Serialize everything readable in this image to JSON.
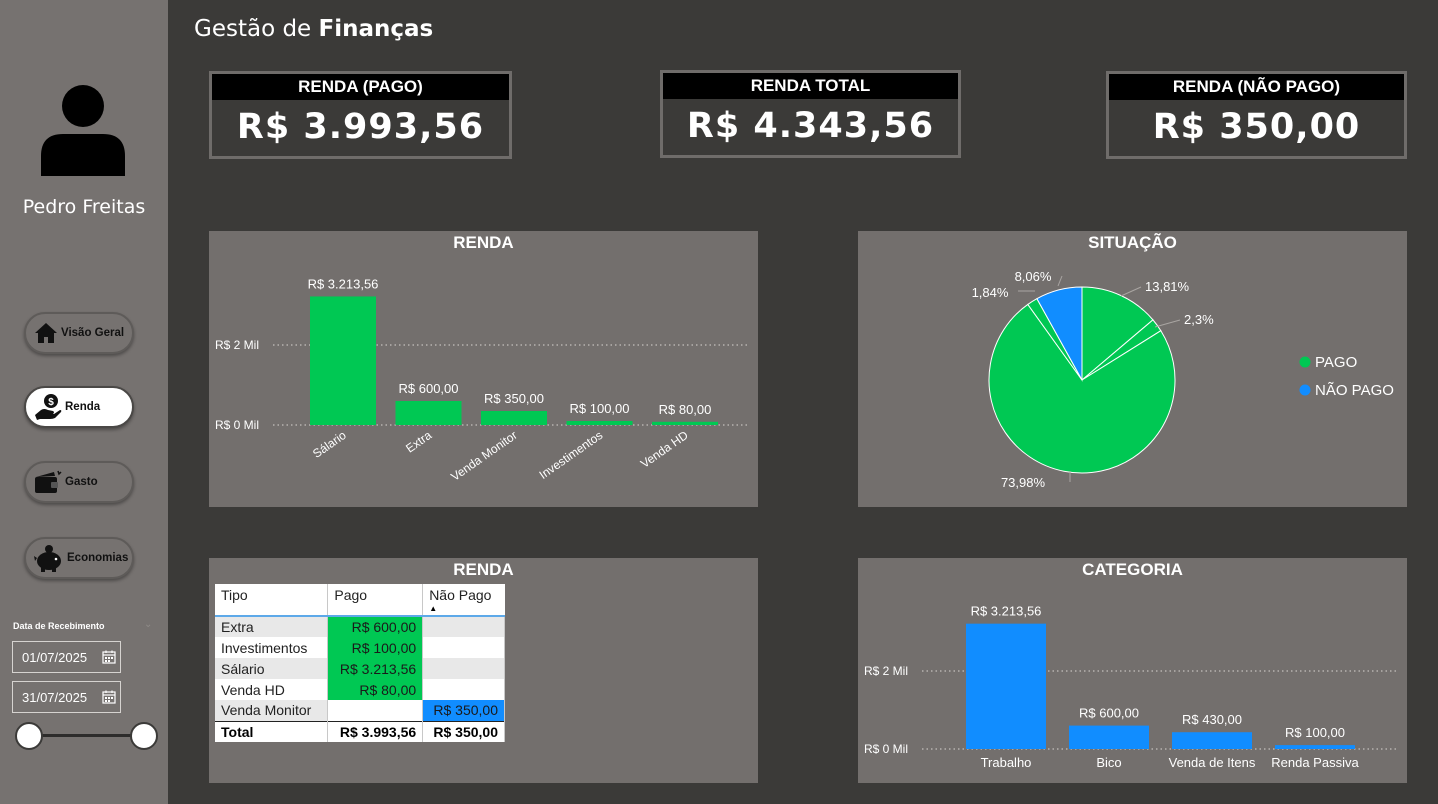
{
  "header": {
    "title_light": "Gestão de",
    "title_bold": "Finanças"
  },
  "sidebar": {
    "user_name": "Pedro Freitas",
    "nav": [
      {
        "label": "Visão Geral",
        "icon": "home-icon",
        "active": false
      },
      {
        "label": "Renda",
        "icon": "money-hand-icon",
        "active": true
      },
      {
        "label": "Gasto",
        "icon": "wallet-icon",
        "active": false
      },
      {
        "label": "Economias",
        "icon": "piggy-bank-icon",
        "active": false
      }
    ],
    "date_filter": {
      "title": "Data de Recebimento",
      "start": "01/07/2025",
      "end": "31/07/2025"
    }
  },
  "kpis": {
    "pago": {
      "label": "RENDA (PAGO)",
      "value": "R$ 3.993,56"
    },
    "total": {
      "label": "RENDA TOTAL",
      "value": "R$ 4.343,56"
    },
    "nao_pago": {
      "label": "RENDA (NÃO PAGO)",
      "value": "R$ 350,00"
    }
  },
  "panels": {
    "renda_chart_title": "RENDA",
    "situacao_title": "SITUAÇÃO",
    "renda_table_title": "RENDA",
    "categoria_title": "CATEGORIA"
  },
  "colors": {
    "green": "#00c853",
    "blue": "#118dff",
    "panel": "#736f6d",
    "background": "#3b3a38"
  },
  "chart_data": [
    {
      "id": "renda",
      "type": "bar",
      "title": "RENDA",
      "categories": [
        "Sálario",
        "Extra",
        "Venda Monitor",
        "Investimentos",
        "Venda HD"
      ],
      "values": [
        3213.56,
        600.0,
        350.0,
        100.0,
        80.0
      ],
      "data_labels": [
        "R$ 3.213,56",
        "R$ 600,00",
        "R$ 350,00",
        "R$ 100,00",
        "R$ 80,00"
      ],
      "yticks": [
        {
          "value": 0,
          "label": "R$ 0 Mil"
        },
        {
          "value": 2000,
          "label": "R$ 2 Mil"
        }
      ],
      "color": "#00c853",
      "grid": true
    },
    {
      "id": "situacao",
      "type": "pie",
      "title": "SITUAÇÃO",
      "legend": [
        {
          "name": "PAGO",
          "color": "#00c853"
        },
        {
          "name": "NÃO PAGO",
          "color": "#118dff"
        }
      ],
      "legend_position": "right",
      "slices": [
        {
          "label": "13,81%",
          "value": 13.81,
          "group": "PAGO"
        },
        {
          "label": "2,3%",
          "value": 2.3,
          "group": "PAGO"
        },
        {
          "label": "73,98%",
          "value": 73.98,
          "group": "PAGO"
        },
        {
          "label": "1,84%",
          "value": 1.84,
          "group": "PAGO"
        },
        {
          "label": "8,06%",
          "value": 8.06,
          "group": "NÃO PAGO"
        }
      ]
    },
    {
      "id": "renda_table",
      "type": "table",
      "title": "RENDA",
      "columns": [
        "Tipo",
        "Pago",
        "Não Pago"
      ],
      "rows": [
        {
          "tipo": "Extra",
          "pago": "R$ 600,00",
          "nao_pago": ""
        },
        {
          "tipo": "Investimentos",
          "pago": "R$ 100,00",
          "nao_pago": ""
        },
        {
          "tipo": "Sálario",
          "pago": "R$ 3.213,56",
          "nao_pago": ""
        },
        {
          "tipo": "Venda HD",
          "pago": "R$ 80,00",
          "nao_pago": ""
        },
        {
          "tipo": "Venda Monitor",
          "pago": "",
          "nao_pago": "R$ 350,00"
        }
      ],
      "total": {
        "tipo": "Total",
        "pago": "R$ 3.993,56",
        "nao_pago": "R$ 350,00"
      }
    },
    {
      "id": "categoria",
      "type": "bar",
      "title": "CATEGORIA",
      "categories": [
        "Trabalho",
        "Bico",
        "Venda de Itens",
        "Renda Passiva"
      ],
      "values": [
        3213.56,
        600.0,
        430.0,
        100.0
      ],
      "data_labels": [
        "R$ 3.213,56",
        "R$ 600,00",
        "R$ 430,00",
        "R$ 100,00"
      ],
      "yticks": [
        {
          "value": 0,
          "label": "R$ 0 Mil"
        },
        {
          "value": 2000,
          "label": "R$ 2 Mil"
        }
      ],
      "color": "#118dff",
      "grid": true
    }
  ]
}
